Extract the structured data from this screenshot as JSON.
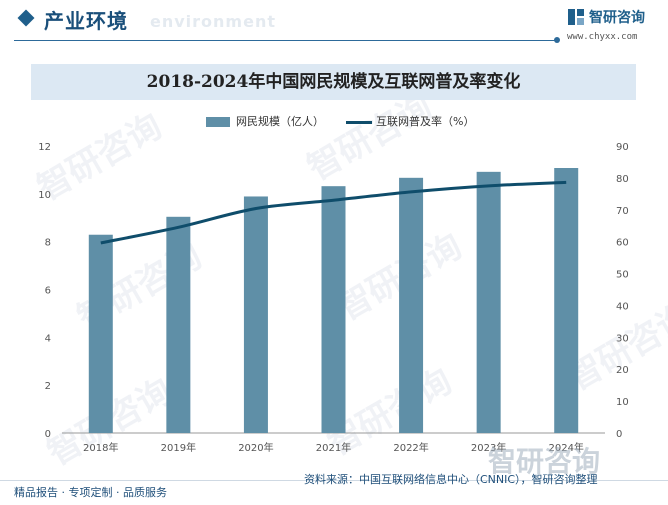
{
  "header": {
    "section_title": "产业环境",
    "section_subtitle": "environment",
    "logo_name": "智研咨询",
    "logo_url": "www.chyxx.com"
  },
  "watermark": {
    "text": "智研咨询",
    "bottom_text": "智研咨询"
  },
  "footer": {
    "left": "精品报告 · 专项定制 · 品质服务",
    "source": "资料来源：中国互联网络信息中心（CNNIC），智研咨询整理"
  },
  "colors": {
    "bar": "#5f8fa7",
    "line": "#0f4d6b",
    "title_bg": "#dce8f3",
    "accent": "#1f5f8b"
  },
  "chart_data": {
    "type": "bar",
    "title": "2018-2024年中国网民规模及互联网普及率变化",
    "categories": [
      "2018年",
      "2019年",
      "2020年",
      "2021年",
      "2022年",
      "2023年",
      "2024年"
    ],
    "series": [
      {
        "name": "网民规模（亿人）",
        "type": "bar",
        "axis": "left",
        "values": [
          8.29,
          9.04,
          9.89,
          10.32,
          10.67,
          10.92,
          11.08
        ]
      },
      {
        "name": "互联网普及率（%）",
        "type": "line",
        "axis": "right",
        "values": [
          59.6,
          64.5,
          70.4,
          73.0,
          75.6,
          77.5,
          78.6
        ]
      }
    ],
    "y_left": {
      "min": 0,
      "max": 12,
      "ticks": [
        0,
        2,
        4,
        6,
        8,
        10,
        12
      ]
    },
    "y_right": {
      "min": 0,
      "max": 90,
      "ticks": [
        0,
        10,
        20,
        30,
        40,
        50,
        60,
        70,
        80,
        90
      ]
    },
    "legend_position": "top-center",
    "grid": false
  }
}
